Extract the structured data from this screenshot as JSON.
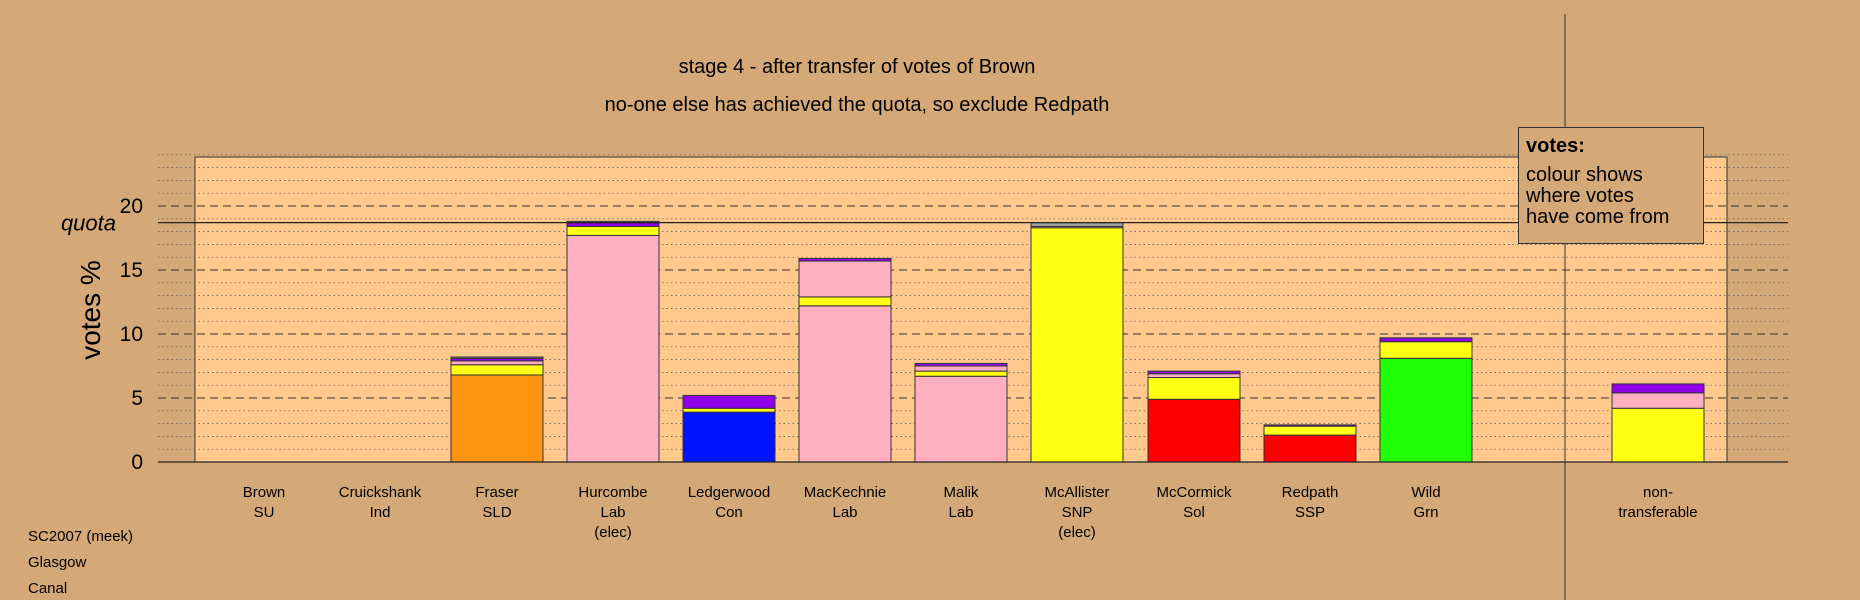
{
  "chart_data": {
    "type": "bar",
    "stacked": true,
    "title": "stage 4 - after transfer of votes of Brown",
    "subtitle": "no-one else has achieved the quota, so exclude Redpath",
    "ylabel": "votes %",
    "ylim": [
      0,
      24
    ],
    "yticks": [
      0,
      5,
      10,
      15,
      20
    ],
    "quota": {
      "label": "quota",
      "value": 18.7
    },
    "grid": true,
    "categories": [
      [
        "Brown",
        "SU"
      ],
      [
        "Cruickshank",
        "Ind"
      ],
      [
        "Fraser",
        "SLD"
      ],
      [
        "Hurcombe",
        "Lab",
        "(elec)"
      ],
      [
        "Ledgerwood",
        "Con"
      ],
      [
        "MacKechnie",
        "Lab"
      ],
      [
        "Malik",
        "Lab"
      ],
      [
        "McAllister",
        "SNP",
        "(elec)"
      ],
      [
        "McCormick",
        "Sol"
      ],
      [
        "Redpath",
        "SSP"
      ],
      [
        "Wild",
        "Grn"
      ],
      [
        "non-",
        "transferable"
      ]
    ],
    "bars": [
      [],
      [],
      [
        {
          "color": "#ff9410",
          "value": 6.8
        },
        {
          "color": "#ffff14",
          "value": 0.8
        },
        {
          "color": "#ffb0c0",
          "value": 0.3
        },
        {
          "color": "#9000e8",
          "value": 0.2
        },
        {
          "color": "#a0a0a0",
          "value": 0.1
        }
      ],
      [
        {
          "color": "#ffb0c0",
          "value": 17.7
        },
        {
          "color": "#ffff14",
          "value": 0.7
        },
        {
          "color": "#9000e8",
          "value": 0.3
        },
        {
          "color": "#a0a0a0",
          "value": 0.1
        }
      ],
      [
        {
          "color": "#0014ff",
          "value": 3.9
        },
        {
          "color": "#ffff14",
          "value": 0.3
        },
        {
          "color": "#9000e8",
          "value": 1.0
        }
      ],
      [
        {
          "color": "#ffb0c0",
          "value": 12.2
        },
        {
          "color": "#ffff14",
          "value": 0.7
        },
        {
          "color": "#ffb0c0",
          "value": 2.8
        },
        {
          "color": "#9000e8",
          "value": 0.2
        }
      ],
      [
        {
          "color": "#ffb0c0",
          "value": 6.7
        },
        {
          "color": "#ffff14",
          "value": 0.4
        },
        {
          "color": "#ffb0c0",
          "value": 0.4
        },
        {
          "color": "#9000e8",
          "value": 0.2
        }
      ],
      [
        {
          "color": "#ffff14",
          "value": 18.3
        },
        {
          "color": "#ffb0c0",
          "value": 0.1
        },
        {
          "color": "#a0a0a0",
          "value": 0.3
        }
      ],
      [
        {
          "color": "#ff0000",
          "value": 4.9
        },
        {
          "color": "#ffff14",
          "value": 1.7
        },
        {
          "color": "#ffb0c0",
          "value": 0.3
        },
        {
          "color": "#9000e8",
          "value": 0.2
        }
      ],
      [
        {
          "color": "#ff0000",
          "value": 2.1
        },
        {
          "color": "#ffff14",
          "value": 0.7
        },
        {
          "color": "#9000e8",
          "value": 0.1
        }
      ],
      [
        {
          "color": "#20ff08",
          "value": 8.1
        },
        {
          "color": "#ffff14",
          "value": 1.3
        },
        {
          "color": "#9000e8",
          "value": 0.3
        }
      ],
      [
        {
          "color": "#ffff14",
          "value": 4.2
        },
        {
          "color": "#ffb0c0",
          "value": 1.2
        },
        {
          "color": "#9000e8",
          "value": 0.7
        }
      ]
    ],
    "legend": {
      "title": "votes:",
      "text": [
        "colour shows",
        "where votes",
        "have come from"
      ]
    }
  },
  "footer": {
    "lines": [
      "SC2007 (meek)",
      "Glasgow",
      "Canal"
    ]
  }
}
